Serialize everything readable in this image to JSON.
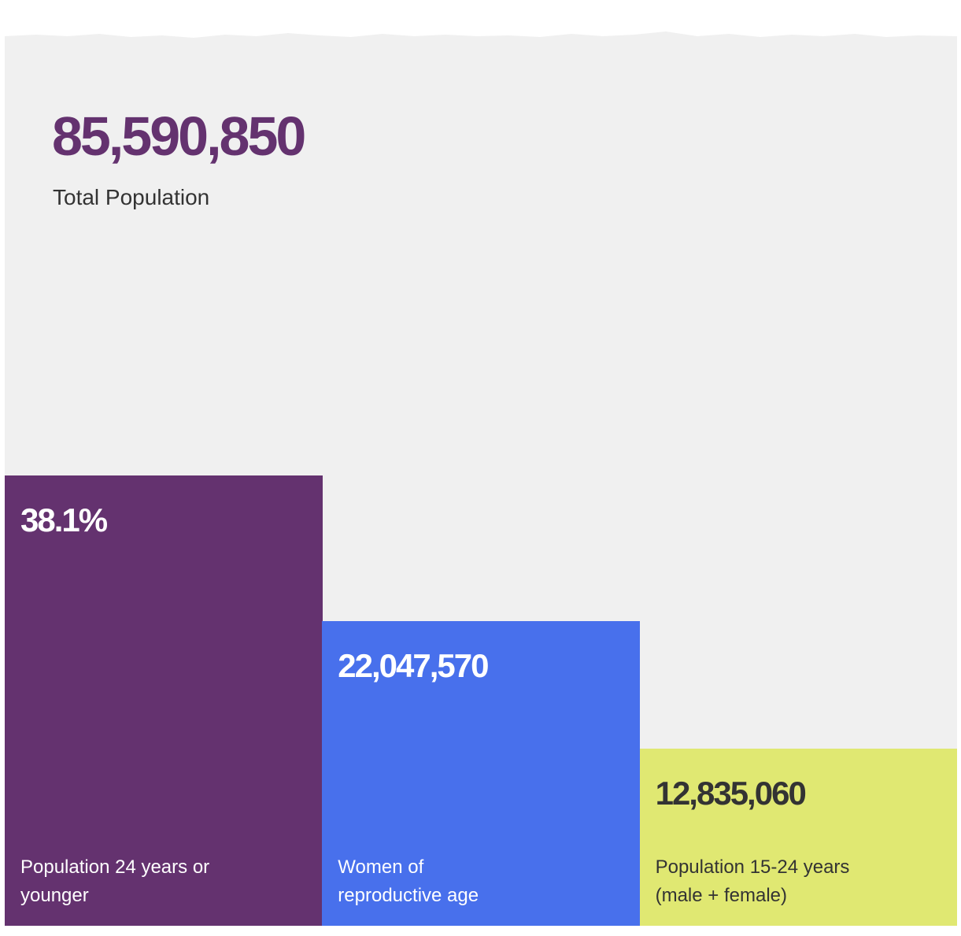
{
  "colors": {
    "background": "#f0f0f0",
    "purple": "#64326f",
    "blue": "#4870ec",
    "lime": "#e0e872",
    "dark_text": "#333333",
    "white_text": "#ffffff"
  },
  "total": {
    "value": "85,590,850",
    "label": "Total Population"
  },
  "chart_data": {
    "type": "bar",
    "title": "",
    "xlabel": "",
    "ylabel": "",
    "categories": [
      "Population 24 years or younger",
      "Women of reproductive age",
      "Population 15-24 years (male + female)"
    ],
    "values": [
      32610114,
      22047570,
      12835060
    ],
    "display_values": [
      "38.1%",
      "22,047,570",
      "12,835,060"
    ],
    "label_lines": [
      [
        "Population 24 years or",
        "younger"
      ],
      [
        "Women of",
        "reproductive age"
      ],
      [
        "Population 15-24 years",
        "(male + female)"
      ]
    ],
    "bar_colors": [
      "#64326f",
      "#4870ec",
      "#e0e872"
    ],
    "text_colors": [
      "#ffffff",
      "#ffffff",
      "#333333"
    ],
    "grid": false,
    "legend": "none"
  }
}
